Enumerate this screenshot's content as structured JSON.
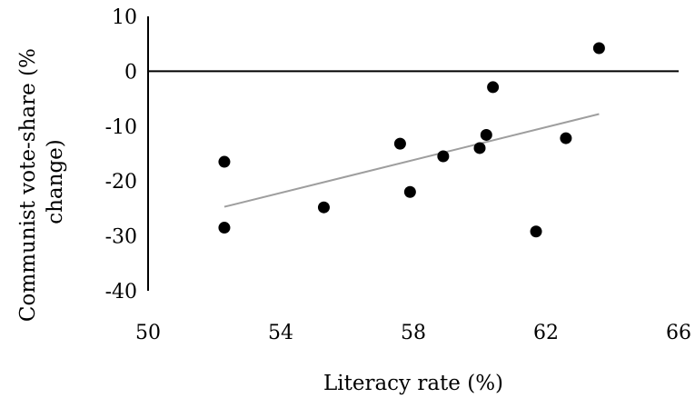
{
  "chart_data": {
    "type": "scatter",
    "title": "",
    "xlabel": "Literacy rate (%)",
    "ylabel_lines": [
      "Communist vote-share (%",
      "change)"
    ],
    "xlim": [
      50,
      66
    ],
    "ylim": [
      -40,
      10
    ],
    "xticks": [
      50,
      54,
      58,
      62,
      66
    ],
    "yticks": [
      10,
      0,
      -10,
      -20,
      -30,
      -40
    ],
    "grid": false,
    "points": [
      {
        "x": 52.3,
        "y": -16.5
      },
      {
        "x": 52.3,
        "y": -28.5
      },
      {
        "x": 55.3,
        "y": -24.8
      },
      {
        "x": 57.6,
        "y": -13.2
      },
      {
        "x": 57.9,
        "y": -22.0
      },
      {
        "x": 58.9,
        "y": -15.5
      },
      {
        "x": 60.0,
        "y": -14.0
      },
      {
        "x": 60.2,
        "y": -11.6
      },
      {
        "x": 60.4,
        "y": -2.9
      },
      {
        "x": 61.7,
        "y": -29.2
      },
      {
        "x": 62.6,
        "y": -12.2
      },
      {
        "x": 63.6,
        "y": 4.2
      }
    ],
    "trendline": {
      "x": [
        52.3,
        63.6
      ],
      "y": [
        -24.7,
        -7.8
      ],
      "color": "#9e9e9e"
    },
    "point_color": "#000000"
  }
}
